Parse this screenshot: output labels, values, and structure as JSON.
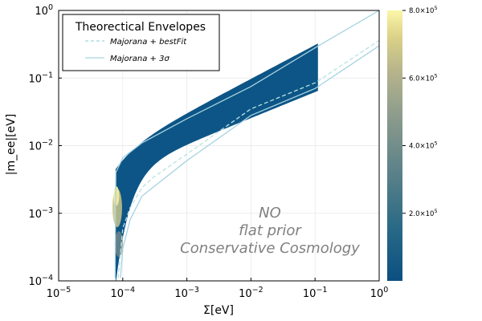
{
  "chart_data": {
    "type": "heatmap",
    "title": "",
    "xlabel": "Σ[eV]",
    "ylabel": "|m_ee|[eV]",
    "xscale": "log",
    "yscale": "log",
    "xlim": [
      1e-05,
      1
    ],
    "ylim": [
      0.0001,
      1
    ],
    "x_ticks": [
      {
        "base": "10",
        "exp": "−5"
      },
      {
        "base": "10",
        "exp": "−4"
      },
      {
        "base": "10",
        "exp": "−3"
      },
      {
        "base": "10",
        "exp": "−2"
      },
      {
        "base": "10",
        "exp": "−1"
      },
      {
        "base": "10",
        "exp": "0"
      }
    ],
    "y_ticks": [
      {
        "base": "10",
        "exp": "−4"
      },
      {
        "base": "10",
        "exp": "−3"
      },
      {
        "base": "10",
        "exp": "−2"
      },
      {
        "base": "10",
        "exp": "−1"
      },
      {
        "base": "10",
        "exp": "0"
      }
    ],
    "grid": true,
    "legend": {
      "title": "Theorectical Envelopes",
      "placement": "top-left",
      "entries": [
        {
          "label": "Majorana + bestFit",
          "style": "dashed",
          "color": "#9fd8d8"
        },
        {
          "label": "Majorana + 3σ",
          "style": "solid",
          "color": "#a7d3e3"
        }
      ]
    },
    "annotation": [
      "NO",
      "flat prior",
      "Conservative Cosmology"
    ],
    "colorbar": {
      "range": [
        0,
        800000
      ],
      "ticks": [
        {
          "mant": "2.0×10",
          "exp": "5"
        },
        {
          "mant": "4.0×10",
          "exp": "5"
        },
        {
          "mant": "6.0×10",
          "exp": "5"
        },
        {
          "mant": "8.0×10",
          "exp": "5"
        }
      ],
      "colors": [
        "#0b4f82",
        "#2a6a86",
        "#5b8189",
        "#8a9a8c",
        "#b3b48c",
        "#dad287",
        "#fbf6a8"
      ]
    },
    "band": {
      "sum_min": 7.8e-05,
      "sum_max": 0.11,
      "mee_upper_end": 0.32,
      "mee_lower_end": 0.065
    },
    "envelopes": {
      "bestfit_lower": [
        [
          8.5e-05,
          0.00011
        ],
        [
          0.0001,
          0.0006
        ],
        [
          0.00013,
          0.0012
        ],
        [
          0.0002,
          0.0024
        ],
        [
          0.0003,
          0.0034
        ],
        [
          0.001,
          0.0075
        ],
        [
          0.01,
          0.035
        ],
        [
          0.1,
          0.085
        ],
        [
          1,
          0.36
        ]
      ],
      "three_sigma_upper": [
        [
          7.6e-05,
          0.00011
        ],
        [
          7.8e-05,
          0.004
        ],
        [
          0.0001,
          0.0066
        ],
        [
          0.0002,
          0.011
        ],
        [
          0.001,
          0.025
        ],
        [
          0.01,
          0.075
        ],
        [
          0.1,
          0.28
        ],
        [
          1,
          1.0
        ]
      ],
      "three_sigma_lower": [
        [
          9.2e-05,
          0.00011
        ],
        [
          0.0001,
          0.0003
        ],
        [
          0.00013,
          0.0008
        ],
        [
          0.0002,
          0.0018
        ],
        [
          0.001,
          0.006
        ],
        [
          0.01,
          0.028
        ],
        [
          0.1,
          0.07
        ],
        [
          1,
          0.3
        ]
      ]
    }
  }
}
